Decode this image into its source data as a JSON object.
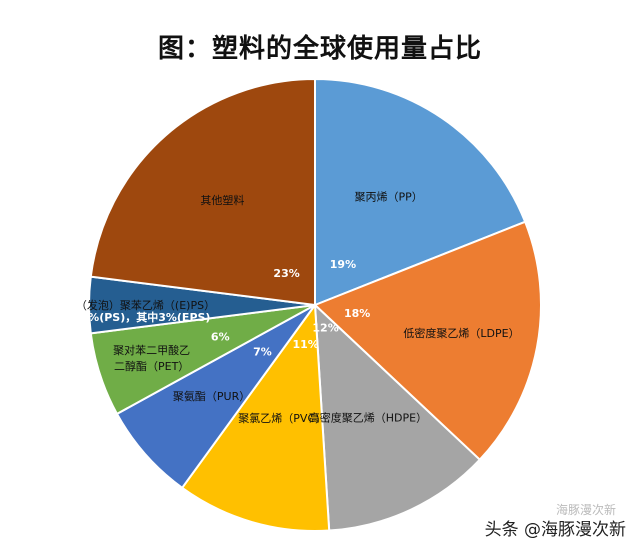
{
  "title": "图：塑料的全球使用量占比",
  "watermark": "头条 @海豚漫次新",
  "watermark_ghost": "海豚漫次新",
  "chart_data": {
    "type": "pie",
    "title": "图：塑料的全球使用量占比",
    "start_angle_deg": 0,
    "direction": "clockwise",
    "slices": [
      {
        "label": "聚丙烯（PP）",
        "pct_label": "19%",
        "value": 19,
        "color": "#5B9BD5"
      },
      {
        "label": "低密度聚乙烯（LDPE）",
        "pct_label": "18%",
        "value": 18,
        "color": "#ED7D31"
      },
      {
        "label": "高密度聚乙烯（HDPE）",
        "pct_label": "12%",
        "value": 12,
        "color": "#A5A5A5"
      },
      {
        "label": "聚氯乙烯（PVC）",
        "pct_label": "11%",
        "value": 11,
        "color": "#FFC000"
      },
      {
        "label": "聚氨酯（PUR）",
        "pct_label": "7%",
        "value": 7,
        "color": "#4472C4"
      },
      {
        "label": [
          "聚对苯二甲酸乙",
          "二醇酯（PET）"
        ],
        "pct_label": "6%",
        "value": 6,
        "color": "#70AD47"
      },
      {
        "label": "（发泡）聚苯乙烯（(E)PS）",
        "pct_label": "4%(PS)，其中3%(EPS)",
        "value": 4,
        "color": "#255E91"
      },
      {
        "label": "其他塑料",
        "pct_label": "23%",
        "value": 23,
        "color": "#9E480E"
      }
    ]
  }
}
